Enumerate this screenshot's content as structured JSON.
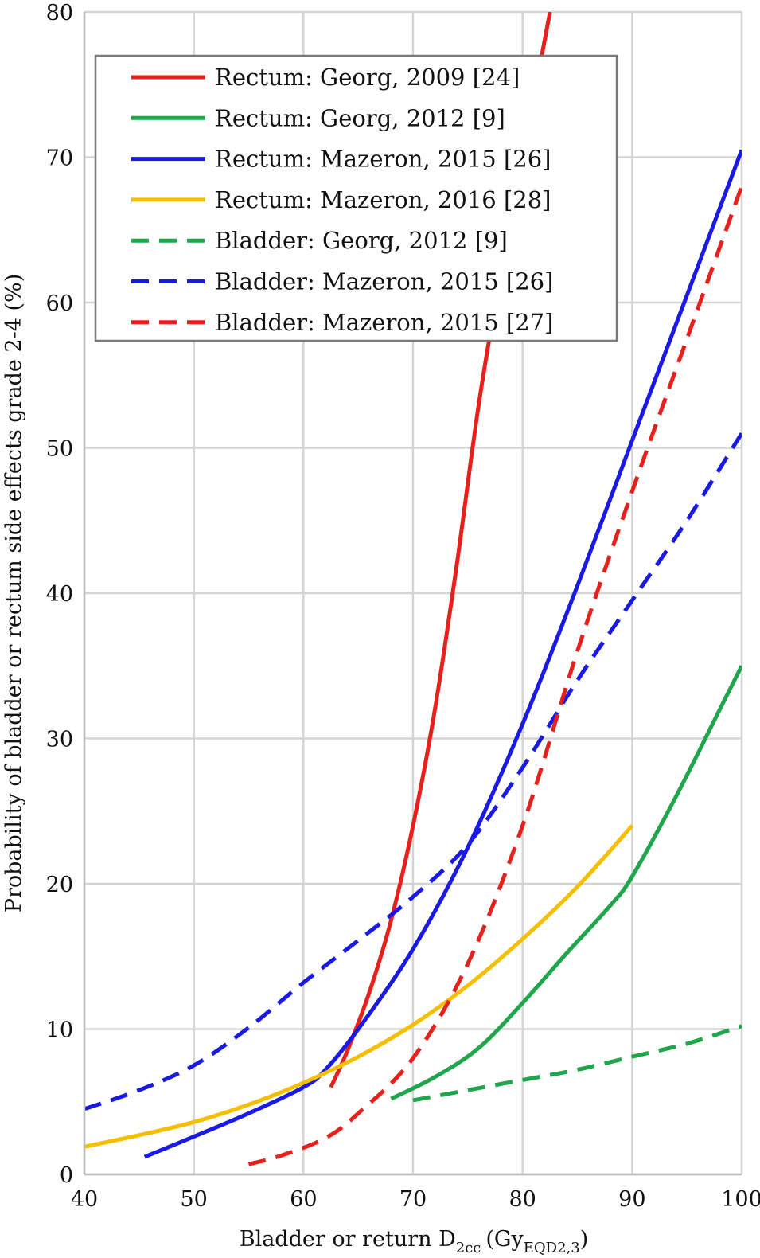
{
  "chart_data": {
    "type": "line",
    "title": "",
    "xlabel": "Bladder or return D",
    "xlabel_subscript": "2cc",
    "xlabel_unit": "(Gy",
    "xlabel_unit_subscript": "EQD2,3",
    "xlabel_close": ")",
    "ylabel": "Probability of bladder or rectum side effects grade 2-4 (%)",
    "xlim": [
      40,
      100
    ],
    "ylim": [
      0,
      80
    ],
    "xticks": [
      40,
      50,
      60,
      70,
      80,
      90,
      100
    ],
    "yticks": [
      0,
      10,
      20,
      30,
      40,
      50,
      60,
      70,
      80
    ],
    "grid": true,
    "legend_position": "top",
    "series": [
      {
        "name": "Rectum: Georg, 2009 [24]",
        "color": "#e8201c",
        "dash": "solid",
        "x": [
          62.5,
          64,
          66,
          68,
          70,
          72,
          74,
          76,
          78,
          80,
          82.5
        ],
        "y": [
          6,
          8.5,
          12.5,
          17.5,
          24,
          32,
          42,
          53,
          62,
          70,
          80
        ]
      },
      {
        "name": "Rectum: Georg, 2012 [9]",
        "color": "#1fa64a",
        "dash": "solid",
        "x": [
          68,
          72,
          76,
          80,
          84,
          88,
          90,
          94,
          98,
          100
        ],
        "y": [
          5.2,
          6.7,
          8.7,
          11.8,
          15.2,
          18.5,
          20.5,
          26,
          32,
          35
        ]
      },
      {
        "name": "Rectum: Mazeron, 2015 [26]",
        "color": "#1a1ae6",
        "dash": "solid",
        "x": [
          45.5,
          50,
          55,
          60,
          62,
          65,
          70,
          75,
          80,
          85,
          90,
          95,
          100
        ],
        "y": [
          1.2,
          2.6,
          4.2,
          6,
          7.2,
          10,
          15.5,
          22.5,
          31,
          40.5,
          50.5,
          60.5,
          70.5
        ]
      },
      {
        "name": "Rectum: Mazeron, 2016 [28]",
        "color": "#f5bf00",
        "dash": "solid",
        "x": [
          40,
          45,
          50,
          55,
          60,
          65,
          70,
          75,
          80,
          85,
          90
        ],
        "y": [
          1.9,
          2.7,
          3.6,
          4.8,
          6.3,
          8.1,
          10.3,
          13,
          16.2,
          19.8,
          24
        ]
      },
      {
        "name": "Bladder: Georg, 2012 [9]",
        "color": "#1fa64a",
        "dash": "dashed",
        "x": [
          70,
          75,
          80,
          85,
          90,
          95,
          100
        ],
        "y": [
          5.1,
          5.8,
          6.5,
          7.2,
          8.1,
          9,
          10.2
        ]
      },
      {
        "name": "Bladder: Mazeron, 2015 [26]",
        "color": "#1a1ae6",
        "dash": "dashed",
        "x": [
          40,
          45,
          50,
          55,
          60,
          65,
          70,
          75,
          80,
          85,
          90,
          95,
          100
        ],
        "y": [
          4.5,
          5.8,
          7.5,
          10.1,
          13.2,
          16.1,
          19.1,
          22.7,
          28,
          34,
          39.5,
          45,
          51
        ]
      },
      {
        "name": "Bladder: Mazeron, 2015 [27]",
        "color": "#e8201c",
        "dash": "dashed",
        "x": [
          55,
          58,
          62,
          65,
          70,
          75,
          80,
          85,
          90,
          95,
          100
        ],
        "y": [
          0.7,
          1.3,
          2.5,
          4.2,
          8,
          14.5,
          24,
          36,
          47,
          57.5,
          68
        ]
      }
    ]
  }
}
